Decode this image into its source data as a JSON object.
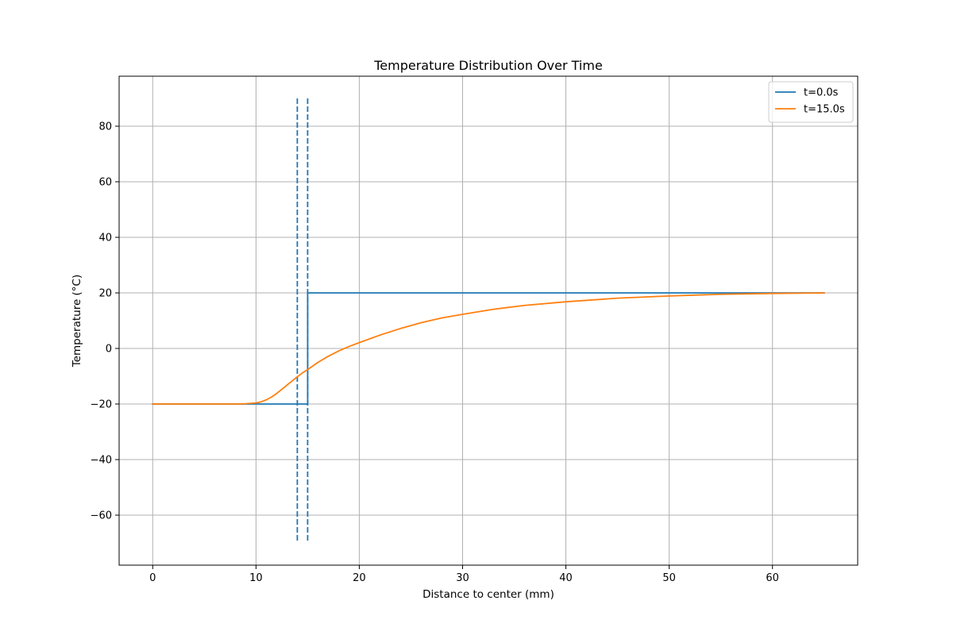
{
  "chart_data": {
    "type": "line",
    "title": "Temperature Distribution Over Time",
    "xlabel": "Distance to center (mm)",
    "ylabel": "Temperature (°C)",
    "xlim": [
      -3.25,
      68.25
    ],
    "ylim": [
      -78,
      98
    ],
    "xticks": [
      0,
      10,
      20,
      30,
      40,
      50,
      60
    ],
    "yticks": [
      -60,
      -40,
      -20,
      0,
      20,
      40,
      60,
      80
    ],
    "xtick_labels": [
      "0",
      "10",
      "20",
      "30",
      "40",
      "50",
      "60"
    ],
    "ytick_labels": [
      "−60",
      "−40",
      "−20",
      "0",
      "20",
      "40",
      "60",
      "80"
    ],
    "grid": true,
    "legend_position": "top-right",
    "series": [
      {
        "name": "t=0.0s",
        "color": "#1f77b4",
        "style": "solid",
        "x": [
          0,
          15,
          15,
          65
        ],
        "y": [
          -20,
          -20,
          20,
          20
        ]
      },
      {
        "name": "t=15.0s",
        "color": "#ff7f0e",
        "style": "solid",
        "x": [
          0,
          5,
          8,
          9,
          10,
          10.5,
          11,
          11.5,
          12,
          12.5,
          13,
          13.5,
          14,
          14.5,
          15,
          16,
          17,
          18,
          19,
          20,
          22,
          24,
          26,
          28,
          30,
          33,
          36,
          40,
          45,
          50,
          55,
          60,
          65
        ],
        "y": [
          -20,
          -20,
          -20,
          -19.9,
          -19.6,
          -19.2,
          -18.5,
          -17.5,
          -16.2,
          -14.7,
          -13.2,
          -11.7,
          -10.2,
          -8.8,
          -7.6,
          -5.0,
          -2.8,
          -0.9,
          0.7,
          2.1,
          4.8,
          7.2,
          9.3,
          11.0,
          12.3,
          14.1,
          15.5,
          16.8,
          18.1,
          18.9,
          19.5,
          19.8,
          20
        ]
      }
    ],
    "vlines": [
      {
        "x": 14,
        "ymin": -70,
        "ymax": 90,
        "color": "#1f77b4",
        "style": "dashed"
      },
      {
        "x": 15,
        "ymin": -70,
        "ymax": 90,
        "color": "#1f77b4",
        "style": "dashed"
      }
    ]
  }
}
